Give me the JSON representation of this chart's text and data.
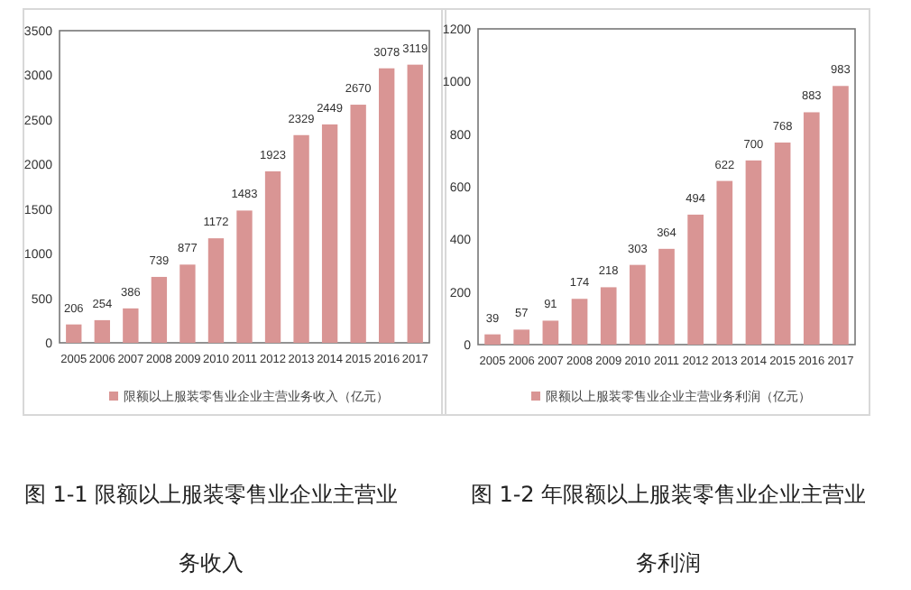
{
  "chart_data": [
    {
      "type": "bar",
      "title": "图 1-1 限额以上服装零售业企业主营业务收入",
      "categories": [
        "2005",
        "2006",
        "2007",
        "2008",
        "2009",
        "2010",
        "2011",
        "2012",
        "2013",
        "2014",
        "2015",
        "2016",
        "2017"
      ],
      "series": [
        {
          "name": "限额以上服装零售业企业主营业务收入（亿元）",
          "color": "#d99594",
          "values": [
            206,
            254,
            386,
            739,
            877,
            1172,
            1483,
            1923,
            2329,
            2449,
            2670,
            3078,
            3119
          ]
        }
      ],
      "ylim": [
        0,
        3500
      ],
      "yticks": [
        0,
        500,
        1000,
        1500,
        2000,
        2500,
        3000,
        3500
      ],
      "data_labels": true,
      "legend": "bottom",
      "grid": false
    },
    {
      "type": "bar",
      "title": "图 1-2 年限额以上服装零售业企业主营业务利润",
      "categories": [
        "2005",
        "2006",
        "2007",
        "2008",
        "2009",
        "2010",
        "2011",
        "2012",
        "2013",
        "2014",
        "2015",
        "2016",
        "2017"
      ],
      "series": [
        {
          "name": "限额以上服装零售业企业主营业务利润（亿元）",
          "color": "#d99594",
          "values": [
            39,
            57,
            91,
            174,
            218,
            303,
            364,
            494,
            622,
            700,
            768,
            883,
            983
          ]
        }
      ],
      "ylim": [
        0,
        1200
      ],
      "yticks": [
        0,
        200,
        400,
        600,
        800,
        1000,
        1200
      ],
      "data_labels": true,
      "legend": "bottom",
      "grid": false
    }
  ]
}
